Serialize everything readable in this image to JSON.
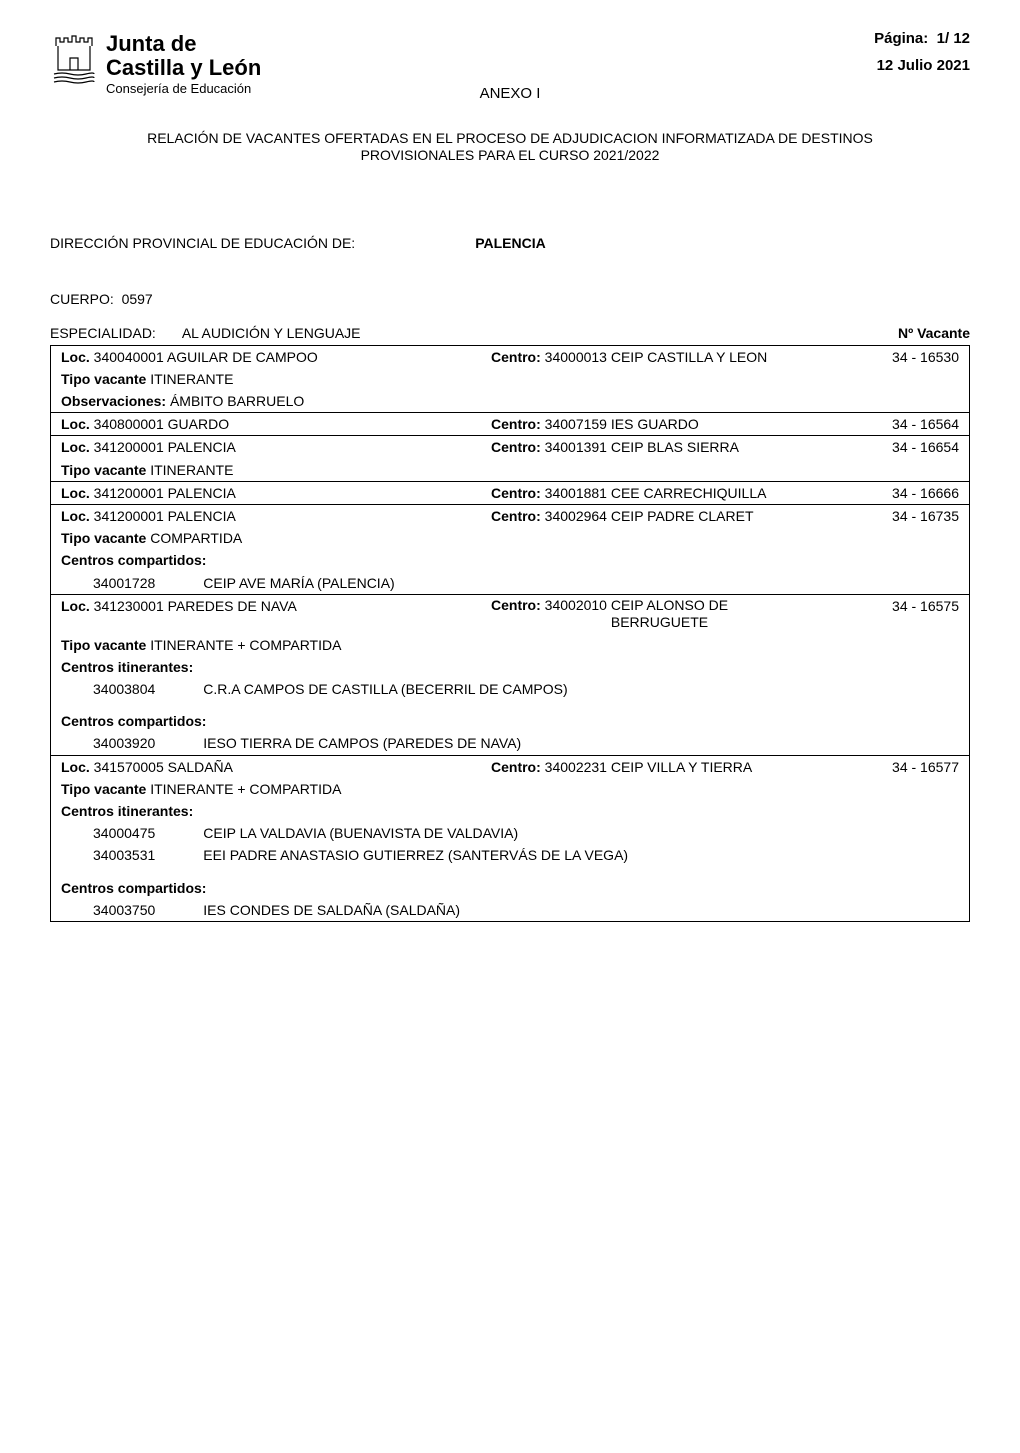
{
  "page": {
    "num": "1",
    "total": "12",
    "pagina_label": "Página:",
    "fecha": "12 Julio 2021"
  },
  "logo": {
    "junta": "Junta de",
    "cyl": "Castilla y León",
    "consejeria": "Consejería de Educación"
  },
  "anexo": "ANEXO I",
  "relacion_title": "RELACIÓN  DE VACANTES  OFERTADAS EN EL PROCESO DE ADJUDICACION INFORMATIZADA  DE DESTINOS PROVISIONALES  PARA EL CURSO 2021/2022",
  "direccion": {
    "label": "DIRECCIÓN PROVINCIAL DE EDUCACIÓN DE:",
    "value": "PALENCIA"
  },
  "cuerpo": {
    "label": "CUERPO:",
    "value": "0597"
  },
  "especialidad": {
    "label": "ESPECIALIDAD:",
    "value": "AL AUDICIÓN Y LENGUAJE"
  },
  "nvacante_label": "Nº Vacante",
  "labels": {
    "loc": "Loc.",
    "centro": "Centro:",
    "tipo_vacante": "Tipo vacante",
    "observaciones": "Observaciones:",
    "centros_compartidos": "Centros compartidos:",
    "centros_itinerantes": "Centros itinerantes:"
  },
  "rows": [
    {
      "type": "main",
      "loc_code": "340040001",
      "loc_name": "AGUILAR DE CAMPOO",
      "centro_code": "34000013",
      "centro_name": "CEIP  CASTILLA Y LEON",
      "vacante": "34 - 16530"
    },
    {
      "type": "tipo",
      "value": "ITINERANTE"
    },
    {
      "type": "obs",
      "value": "ÁMBITO BARRUELO"
    },
    {
      "type": "main",
      "border": true,
      "loc_code": "340800001",
      "loc_name": "GUARDO",
      "centro_code": "34007159",
      "centro_name": "IES  GUARDO",
      "vacante": "34 - 16564"
    },
    {
      "type": "main",
      "border": true,
      "loc_code": "341200001",
      "loc_name": "PALENCIA",
      "centro_code": "34001391",
      "centro_name": "CEIP  BLAS SIERRA",
      "vacante": "34 - 16654"
    },
    {
      "type": "tipo",
      "value": "ITINERANTE"
    },
    {
      "type": "main",
      "border": true,
      "loc_code": "341200001",
      "loc_name": "PALENCIA",
      "centro_code": "34001881",
      "centro_name": "CEE  CARRECHIQUILLA",
      "vacante": "34 - 16666"
    },
    {
      "type": "main",
      "border": true,
      "loc_code": "341200001",
      "loc_name": "PALENCIA",
      "centro_code": "34002964",
      "centro_name": "CEIP  PADRE CLARET",
      "vacante": "34 - 16735"
    },
    {
      "type": "tipo",
      "value": "COMPARTIDA"
    },
    {
      "type": "section",
      "key": "centros_compartidos"
    },
    {
      "type": "nested",
      "code": "34001728",
      "name": "CEIP AVE MARÍA (PALENCIA)"
    },
    {
      "type": "main",
      "border": true,
      "loc_code": "341230001",
      "loc_name": "PAREDES DE NAVA",
      "centro_code": "34002010",
      "centro_name": "CEIP  ALONSO DE BERRUGUETE",
      "centro_multiline": true,
      "vacante": "34 - 16575"
    },
    {
      "type": "tipo",
      "value": "ITINERANTE + COMPARTIDA"
    },
    {
      "type": "section",
      "key": "centros_itinerantes"
    },
    {
      "type": "nested",
      "code": "34003804",
      "name": "C.R.A CAMPOS DE CASTILLA (BECERRIL DE CAMPOS)"
    },
    {
      "type": "spacer"
    },
    {
      "type": "section",
      "key": "centros_compartidos"
    },
    {
      "type": "nested",
      "code": "34003920",
      "name": "IESO TIERRA DE CAMPOS (PAREDES DE NAVA)"
    },
    {
      "type": "main",
      "border": true,
      "loc_code": "341570005",
      "loc_name": "SALDAÑA",
      "centro_code": "34002231",
      "centro_name": "CEIP  VILLA Y TIERRA",
      "vacante": "34 - 16577"
    },
    {
      "type": "tipo",
      "value": "ITINERANTE + COMPARTIDA"
    },
    {
      "type": "section",
      "key": "centros_itinerantes"
    },
    {
      "type": "nested",
      "code": "34000475",
      "name": "CEIP LA VALDAVIA (BUENAVISTA DE VALDAVIA)"
    },
    {
      "type": "nested",
      "code": "34003531",
      "name": "EEI PADRE ANASTASIO GUTIERREZ (SANTERVÁS DE LA VEGA)"
    },
    {
      "type": "spacer"
    },
    {
      "type": "section",
      "key": "centros_compartidos"
    },
    {
      "type": "nested",
      "code": "34003750",
      "name": "IES CONDES DE SALDAÑA (SALDAÑA)"
    }
  ]
}
